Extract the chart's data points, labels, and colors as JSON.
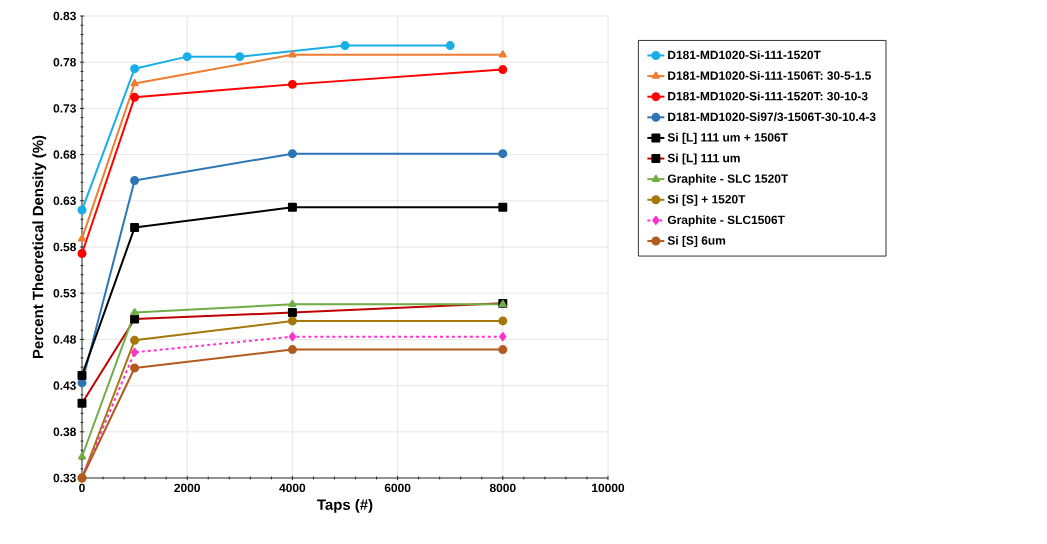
{
  "chart_data": {
    "type": "line",
    "xlabel": "Taps (#)",
    "ylabel": "Percent Theoretical Density (%)",
    "xlim": [
      0,
      10000
    ],
    "xticks": [
      0,
      2000,
      4000,
      6000,
      8000,
      10000
    ],
    "ylim": [
      0.33,
      0.83
    ],
    "yticks": [
      0.33,
      0.38,
      0.43,
      0.48,
      0.53,
      0.58,
      0.63,
      0.68,
      0.73,
      0.78,
      0.83
    ],
    "grid": true,
    "legend": "right",
    "series": [
      {
        "name": "D181-MD1020-Si-111-1520T",
        "color": "#1aaee8",
        "marker": "circle",
        "x": [
          0,
          1000,
          2000,
          3000,
          5000,
          7000
        ],
        "values": [
          0.62,
          0.773,
          0.786,
          0.786,
          0.798,
          0.798
        ]
      },
      {
        "name": "D181-MD1020-Si-111-1506T: 30-5-1.5",
        "color": "#ed7d31",
        "marker": "triangle",
        "x": [
          0,
          1000,
          4000,
          8000
        ],
        "values": [
          0.589,
          0.757,
          0.788,
          0.788
        ]
      },
      {
        "name": "D181-MD1020-Si-111-1520T: 30-10-3",
        "color": "#ff0000",
        "marker": "circle",
        "x": [
          0,
          1000,
          4000,
          8000
        ],
        "values": [
          0.573,
          0.742,
          0.756,
          0.772
        ]
      },
      {
        "name": "D181-MD1020-Si97/3-1506T-30-10.4-3",
        "color": "#2e75b6",
        "marker": "circle",
        "x": [
          0,
          1000,
          4000,
          8000
        ],
        "values": [
          0.433,
          0.652,
          0.681,
          0.681
        ]
      },
      {
        "name": "Si [L] 111 um + 1506T",
        "color": "#000000",
        "marker": "square",
        "x": [
          0,
          1000,
          4000,
          8000
        ],
        "values": [
          0.441,
          0.601,
          0.623,
          0.623
        ]
      },
      {
        "name": "Si [L] 111 um",
        "color": "#c00000",
        "marker": "square",
        "x": [
          0,
          1000,
          4000,
          8000
        ],
        "values": [
          0.411,
          0.502,
          0.509,
          0.519
        ]
      },
      {
        "name": "Graphite - SLC 1520T",
        "color": "#70ad47",
        "marker": "triangle",
        "x": [
          0,
          1000,
          4000,
          8000
        ],
        "values": [
          0.353,
          0.509,
          0.518,
          0.518
        ]
      },
      {
        "name": "Si [S] + 1520T",
        "color": "#a5780a",
        "marker": "circle",
        "x": [
          0,
          1000,
          4000,
          8000
        ],
        "values": [
          0.33,
          0.479,
          0.5,
          0.5
        ]
      },
      {
        "name": "Graphite - SLC1506T",
        "color": "#ff33cc",
        "marker": "diamond",
        "line_style": "dashed",
        "x": [
          0,
          1000,
          4000,
          8000
        ],
        "values": [
          0.33,
          0.466,
          0.483,
          0.483
        ]
      },
      {
        "name": "Si [S] 6um",
        "color": "#b35a1f",
        "marker": "circle",
        "x": [
          0,
          1000,
          4000,
          8000
        ],
        "values": [
          0.33,
          0.449,
          0.469,
          0.469
        ]
      }
    ]
  }
}
